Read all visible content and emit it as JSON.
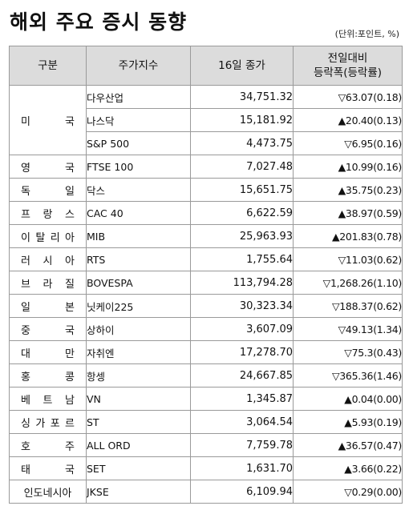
{
  "title": "해외 주요 증시 동향",
  "unit": "(단위:포인트, %)",
  "headers": {
    "region": "구분",
    "index": "주가지수",
    "close": "16일 종가",
    "change_line1": "전일대비",
    "change_line2": "등락폭(등락률)"
  },
  "rows": [
    {
      "region": "미국",
      "index": "다우산업",
      "close": "34,751.32",
      "change": "▽63.07(0.18)"
    },
    {
      "region": "",
      "index": "나스닥",
      "close": "15,181.92",
      "change": "▲20.40(0.13)"
    },
    {
      "region": "",
      "index": "S&P 500",
      "close": "4,473.75",
      "change": "▽6.95(0.16)"
    },
    {
      "region": "영국",
      "index": "FTSE 100",
      "close": "7,027.48",
      "change": "▲10.99(0.16)"
    },
    {
      "region": "독일",
      "index": "닥스",
      "close": "15,651.75",
      "change": "▲35.75(0.23)"
    },
    {
      "region": "프랑스",
      "index": "CAC 40",
      "close": "6,622.59",
      "change": "▲38.97(0.59)"
    },
    {
      "region": "이탈리아",
      "index": "MIB",
      "close": "25,963.93",
      "change": "▲201.83(0.78)"
    },
    {
      "region": "러시아",
      "index": "RTS",
      "close": "1,755.64",
      "change": "▽11.03(0.62)"
    },
    {
      "region": "브라질",
      "index": "BOVESPA",
      "close": "113,794.28",
      "change": "▽1,268.26(1.10)"
    },
    {
      "region": "일본",
      "index": "닛케이225",
      "close": "30,323.34",
      "change": "▽188.37(0.62)"
    },
    {
      "region": "중국",
      "index": "상하이",
      "close": "3,607.09",
      "change": "▽49.13(1.34)"
    },
    {
      "region": "대만",
      "index": "자취엔",
      "close": "17,278.70",
      "change": "▽75.3(0.43)"
    },
    {
      "region": "홍콩",
      "index": "항셍",
      "close": "24,667.85",
      "change": "▽365.36(1.46)"
    },
    {
      "region": "베트남",
      "index": "VN",
      "close": "1,345.87",
      "change": "▲0.04(0.00)"
    },
    {
      "region": "싱가포르",
      "index": "ST",
      "close": "3,064.54",
      "change": "▲5.93(0.19)"
    },
    {
      "region": "호주",
      "index": "ALL ORD",
      "close": "7,759.78",
      "change": "▲36.57(0.47)"
    },
    {
      "region": "태국",
      "index": "SET",
      "close": "1,631.70",
      "change": "▲3.66(0.22)"
    },
    {
      "region": "인도네시아",
      "index": "JKSE",
      "close": "6,109.94",
      "change": "▽0.29(0.00)"
    }
  ]
}
